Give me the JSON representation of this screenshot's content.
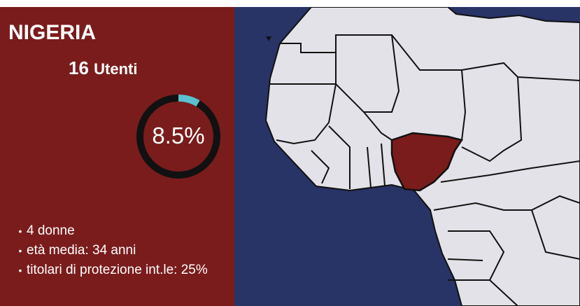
{
  "panel": {
    "title": "NIGERIA",
    "users": {
      "count": "16",
      "label": "Utenti"
    },
    "ring": {
      "value": 8.5,
      "label": "8.5%",
      "color": "#5bc0d0"
    },
    "bullets": [
      "4 donne",
      "età media: 34 anni",
      "titolari di protezione int.le: 25%"
    ]
  }
}
